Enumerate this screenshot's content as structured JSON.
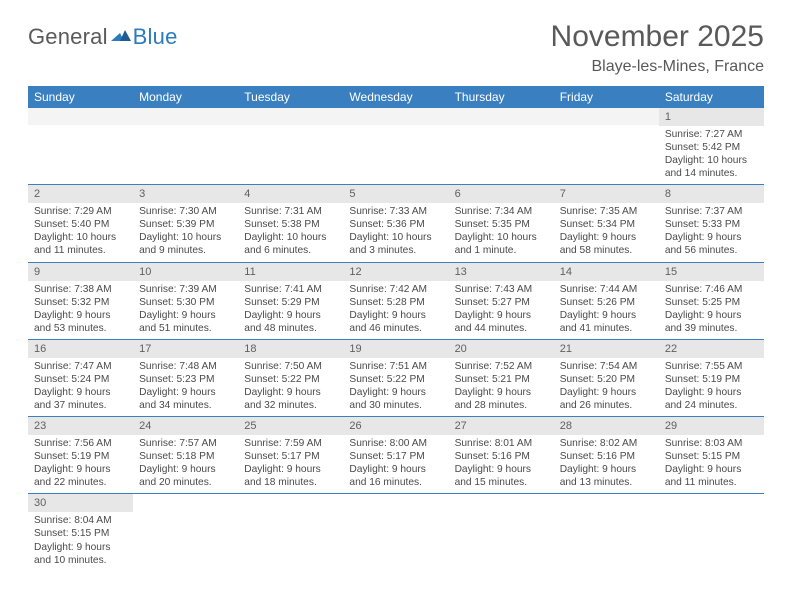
{
  "logo": {
    "part1": "General",
    "part2": "Blue"
  },
  "title": "November 2025",
  "subtitle": "Blaye-les-Mines, France",
  "dayHeaders": [
    "Sunday",
    "Monday",
    "Tuesday",
    "Wednesday",
    "Thursday",
    "Friday",
    "Saturday"
  ],
  "colors": {
    "headerBg": "#3a7fc0",
    "rowDivider": "#3a7fc0",
    "dayNumBg": "#e7e7e7",
    "emptyBg": "#f4f4f4",
    "text": "#4a4a4a",
    "titleText": "#595959",
    "logoBlue": "#2b7bbf"
  },
  "weeks": [
    [
      null,
      null,
      null,
      null,
      null,
      null,
      {
        "n": "1",
        "l": [
          "Sunrise: 7:27 AM",
          "Sunset: 5:42 PM",
          "Daylight: 10 hours",
          "and 14 minutes."
        ]
      }
    ],
    [
      {
        "n": "2",
        "l": [
          "Sunrise: 7:29 AM",
          "Sunset: 5:40 PM",
          "Daylight: 10 hours",
          "and 11 minutes."
        ]
      },
      {
        "n": "3",
        "l": [
          "Sunrise: 7:30 AM",
          "Sunset: 5:39 PM",
          "Daylight: 10 hours",
          "and 9 minutes."
        ]
      },
      {
        "n": "4",
        "l": [
          "Sunrise: 7:31 AM",
          "Sunset: 5:38 PM",
          "Daylight: 10 hours",
          "and 6 minutes."
        ]
      },
      {
        "n": "5",
        "l": [
          "Sunrise: 7:33 AM",
          "Sunset: 5:36 PM",
          "Daylight: 10 hours",
          "and 3 minutes."
        ]
      },
      {
        "n": "6",
        "l": [
          "Sunrise: 7:34 AM",
          "Sunset: 5:35 PM",
          "Daylight: 10 hours",
          "and 1 minute."
        ]
      },
      {
        "n": "7",
        "l": [
          "Sunrise: 7:35 AM",
          "Sunset: 5:34 PM",
          "Daylight: 9 hours",
          "and 58 minutes."
        ]
      },
      {
        "n": "8",
        "l": [
          "Sunrise: 7:37 AM",
          "Sunset: 5:33 PM",
          "Daylight: 9 hours",
          "and 56 minutes."
        ]
      }
    ],
    [
      {
        "n": "9",
        "l": [
          "Sunrise: 7:38 AM",
          "Sunset: 5:32 PM",
          "Daylight: 9 hours",
          "and 53 minutes."
        ]
      },
      {
        "n": "10",
        "l": [
          "Sunrise: 7:39 AM",
          "Sunset: 5:30 PM",
          "Daylight: 9 hours",
          "and 51 minutes."
        ]
      },
      {
        "n": "11",
        "l": [
          "Sunrise: 7:41 AM",
          "Sunset: 5:29 PM",
          "Daylight: 9 hours",
          "and 48 minutes."
        ]
      },
      {
        "n": "12",
        "l": [
          "Sunrise: 7:42 AM",
          "Sunset: 5:28 PM",
          "Daylight: 9 hours",
          "and 46 minutes."
        ]
      },
      {
        "n": "13",
        "l": [
          "Sunrise: 7:43 AM",
          "Sunset: 5:27 PM",
          "Daylight: 9 hours",
          "and 44 minutes."
        ]
      },
      {
        "n": "14",
        "l": [
          "Sunrise: 7:44 AM",
          "Sunset: 5:26 PM",
          "Daylight: 9 hours",
          "and 41 minutes."
        ]
      },
      {
        "n": "15",
        "l": [
          "Sunrise: 7:46 AM",
          "Sunset: 5:25 PM",
          "Daylight: 9 hours",
          "and 39 minutes."
        ]
      }
    ],
    [
      {
        "n": "16",
        "l": [
          "Sunrise: 7:47 AM",
          "Sunset: 5:24 PM",
          "Daylight: 9 hours",
          "and 37 minutes."
        ]
      },
      {
        "n": "17",
        "l": [
          "Sunrise: 7:48 AM",
          "Sunset: 5:23 PM",
          "Daylight: 9 hours",
          "and 34 minutes."
        ]
      },
      {
        "n": "18",
        "l": [
          "Sunrise: 7:50 AM",
          "Sunset: 5:22 PM",
          "Daylight: 9 hours",
          "and 32 minutes."
        ]
      },
      {
        "n": "19",
        "l": [
          "Sunrise: 7:51 AM",
          "Sunset: 5:22 PM",
          "Daylight: 9 hours",
          "and 30 minutes."
        ]
      },
      {
        "n": "20",
        "l": [
          "Sunrise: 7:52 AM",
          "Sunset: 5:21 PM",
          "Daylight: 9 hours",
          "and 28 minutes."
        ]
      },
      {
        "n": "21",
        "l": [
          "Sunrise: 7:54 AM",
          "Sunset: 5:20 PM",
          "Daylight: 9 hours",
          "and 26 minutes."
        ]
      },
      {
        "n": "22",
        "l": [
          "Sunrise: 7:55 AM",
          "Sunset: 5:19 PM",
          "Daylight: 9 hours",
          "and 24 minutes."
        ]
      }
    ],
    [
      {
        "n": "23",
        "l": [
          "Sunrise: 7:56 AM",
          "Sunset: 5:19 PM",
          "Daylight: 9 hours",
          "and 22 minutes."
        ]
      },
      {
        "n": "24",
        "l": [
          "Sunrise: 7:57 AM",
          "Sunset: 5:18 PM",
          "Daylight: 9 hours",
          "and 20 minutes."
        ]
      },
      {
        "n": "25",
        "l": [
          "Sunrise: 7:59 AM",
          "Sunset: 5:17 PM",
          "Daylight: 9 hours",
          "and 18 minutes."
        ]
      },
      {
        "n": "26",
        "l": [
          "Sunrise: 8:00 AM",
          "Sunset: 5:17 PM",
          "Daylight: 9 hours",
          "and 16 minutes."
        ]
      },
      {
        "n": "27",
        "l": [
          "Sunrise: 8:01 AM",
          "Sunset: 5:16 PM",
          "Daylight: 9 hours",
          "and 15 minutes."
        ]
      },
      {
        "n": "28",
        "l": [
          "Sunrise: 8:02 AM",
          "Sunset: 5:16 PM",
          "Daylight: 9 hours",
          "and 13 minutes."
        ]
      },
      {
        "n": "29",
        "l": [
          "Sunrise: 8:03 AM",
          "Sunset: 5:15 PM",
          "Daylight: 9 hours",
          "and 11 minutes."
        ]
      }
    ],
    [
      {
        "n": "30",
        "l": [
          "Sunrise: 8:04 AM",
          "Sunset: 5:15 PM",
          "Daylight: 9 hours",
          "and 10 minutes."
        ]
      },
      null,
      null,
      null,
      null,
      null,
      null
    ]
  ]
}
